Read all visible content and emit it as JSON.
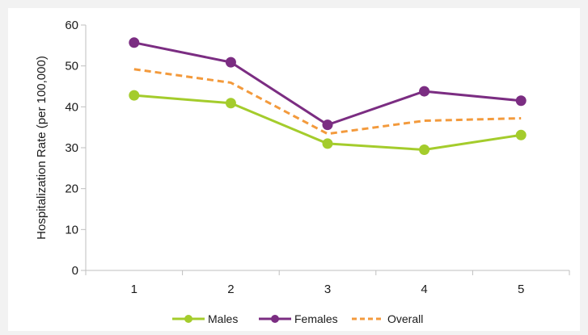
{
  "chart_data": {
    "type": "line",
    "title": "",
    "xlabel": "",
    "ylabel": "Hospitalization Rate (per 100,000)",
    "categories": [
      "1",
      "2",
      "3",
      "4",
      "5"
    ],
    "ylim": [
      0,
      60
    ],
    "yticks": [
      0,
      10,
      20,
      30,
      40,
      50,
      60
    ],
    "grid": false,
    "legend_position": "bottom",
    "series": [
      {
        "name": "Males",
        "values": [
          42.8,
          40.9,
          31.0,
          29.5,
          33.1
        ],
        "color": "#a4cc2c",
        "style": "solid",
        "marker": "circle"
      },
      {
        "name": "Females",
        "values": [
          55.7,
          50.9,
          35.6,
          43.8,
          41.5
        ],
        "color": "#7b2d82",
        "style": "solid",
        "marker": "circle"
      },
      {
        "name": "Overall",
        "values": [
          49.2,
          45.9,
          33.4,
          36.6,
          37.2
        ],
        "color": "#f39a3c",
        "style": "dashed",
        "marker": "none"
      }
    ]
  }
}
